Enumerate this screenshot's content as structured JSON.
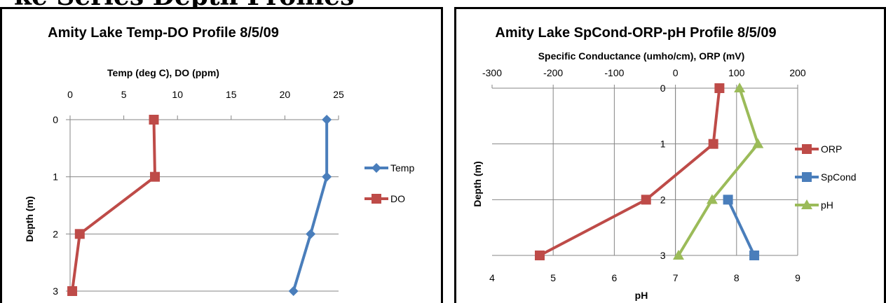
{
  "page": {
    "heading": "ke Series Depth Profiles"
  },
  "colors": {
    "temp": "#4a7ebb",
    "do": "#be4b48",
    "orp": "#be4b48",
    "spcond": "#4a7ebb",
    "ph": "#9bbb59",
    "grid": "#868686"
  },
  "chart_data": [
    {
      "type": "line",
      "title": "Amity Lake Temp-DO Profile 8/5/09",
      "xlabel": "Temp (deg C), DO (ppm)",
      "ylabel": "Depth (m)",
      "xlim": [
        0,
        25
      ],
      "xticks": [
        "0",
        "5",
        "10",
        "15",
        "20",
        "25"
      ],
      "ylim": [
        0,
        3
      ],
      "yticks": [
        "0",
        "1",
        "2",
        "3"
      ],
      "y_inverted": true,
      "x_axis_position": "top",
      "grid": "horizontal",
      "legend": "right",
      "series": [
        {
          "name": "Temp",
          "marker": "diamond",
          "color": "#4a7ebb",
          "x": [
            23.9,
            23.9,
            22.4,
            20.8
          ],
          "y": [
            0,
            1,
            2,
            3
          ]
        },
        {
          "name": "DO",
          "marker": "square",
          "color": "#be4b48",
          "x": [
            7.8,
            7.9,
            0.9,
            0.2
          ],
          "y": [
            0,
            1,
            2,
            3
          ]
        }
      ]
    },
    {
      "type": "line",
      "title": "Amity Lake SpCond-ORP-pH Profile 8/5/09",
      "xlabel": "Specific Conductance (umho/cm), ORP (mV)",
      "x2label": "pH",
      "ylabel": "Depth (m)",
      "xlim": [
        -300,
        200
      ],
      "xticks": [
        "-300",
        "-200",
        "-100",
        "0",
        "100",
        "200"
      ],
      "x2lim": [
        4,
        9
      ],
      "x2ticks": [
        "4",
        "5",
        "6",
        "7",
        "8",
        "9"
      ],
      "ylim": [
        0,
        3
      ],
      "yticks": [
        "0",
        "1",
        "2",
        "3"
      ],
      "y_inverted": true,
      "grid": "both",
      "legend": "right",
      "series": [
        {
          "name": "ORP",
          "marker": "square",
          "color": "#be4b48",
          "axis": "primary",
          "x": [
            72,
            62,
            -48,
            -222
          ],
          "y": [
            0,
            1,
            2,
            3
          ]
        },
        {
          "name": "SpCond",
          "marker": "square",
          "color": "#4a7ebb",
          "axis": "primary",
          "x": [
            null,
            null,
            86,
            129
          ],
          "y": [
            0,
            1,
            2,
            3
          ]
        },
        {
          "name": "pH",
          "marker": "triangle",
          "color": "#9bbb59",
          "axis": "secondary",
          "x": [
            8.05,
            8.35,
            7.6,
            7.05
          ],
          "y": [
            0,
            1,
            2,
            3
          ]
        }
      ]
    }
  ]
}
